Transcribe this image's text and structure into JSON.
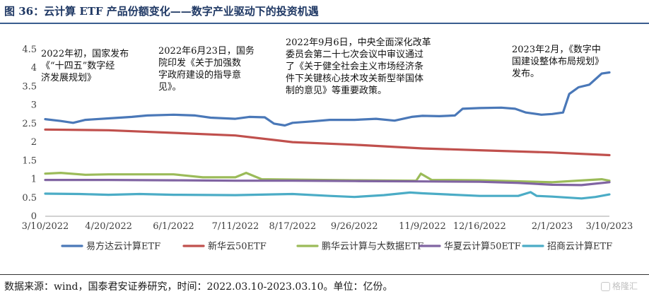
{
  "header": {
    "title": "图 36：云计算 ETF 产品份额变化——数字产业驱动下的投资机遇"
  },
  "footer": {
    "source": "数据来源：wind，国泰君安证券研究，时间：2022.03.10-2023.03.10。单位：亿份。",
    "watermark": "格隆汇"
  },
  "chart_data": {
    "type": "line",
    "title": "",
    "xlabel": "",
    "ylabel": "",
    "x_range": [
      "2022-03-10",
      "2023-03-10"
    ],
    "ylim": [
      0,
      4.5
    ],
    "y_ticks": [
      "0",
      "0.5",
      "1",
      "1.5",
      "2",
      "2.5",
      "3",
      "3.5",
      "4",
      "4.5"
    ],
    "x_ticks": [
      {
        "date": "2022-03-10",
        "label": "3/10/2022"
      },
      {
        "date": "2022-04-20",
        "label": "4/20/2022"
      },
      {
        "date": "2022-06-01",
        "label": "6/1/2022"
      },
      {
        "date": "2022-07-11",
        "label": "7/11/2022"
      },
      {
        "date": "2022-08-17",
        "label": "8/17/2022"
      },
      {
        "date": "2022-09-26",
        "label": "9/26/2022"
      },
      {
        "date": "2022-11-09",
        "label": "11/9/2022"
      },
      {
        "date": "2022-12-16",
        "label": "12/16/2022"
      },
      {
        "date": "2023-02-01",
        "label": "2/1/2023"
      },
      {
        "date": "2023-03-10",
        "label": "3/10/2023"
      }
    ],
    "grid": false,
    "legend_position": "bottom",
    "annotations": [
      {
        "lines": [
          "2022年初，国家发布",
          "《“十四五”数字经",
          "济发展规划》"
        ]
      },
      {
        "lines": [
          "2022年6月23日，国务",
          "院印发《关于加强数",
          "字政府建设的指导意",
          "见》。"
        ]
      },
      {
        "lines": [
          "2022年9月6日，中央全面深化改革",
          "委员会第二十七次会议中审议通过",
          "了《关于健全社会主义市场经济条",
          "件下关键核心技术攻关新型举国体",
          "制的意见》等重要政策。"
        ]
      },
      {
        "lines": [
          "2023年2月，《数字中",
          "国建设整体布局规划》",
          "发布。"
        ]
      }
    ],
    "series": [
      {
        "name": "易方达云计算ETF",
        "color": "#4a78b8",
        "points": [
          [
            "2022-03-10",
            2.62
          ],
          [
            "2022-03-20",
            2.57
          ],
          [
            "2022-03-28",
            2.52
          ],
          [
            "2022-04-05",
            2.6
          ],
          [
            "2022-04-20",
            2.64
          ],
          [
            "2022-05-05",
            2.68
          ],
          [
            "2022-05-15",
            2.72
          ],
          [
            "2022-06-01",
            2.74
          ],
          [
            "2022-06-15",
            2.72
          ],
          [
            "2022-06-25",
            2.66
          ],
          [
            "2022-07-11",
            2.63
          ],
          [
            "2022-07-20",
            2.68
          ],
          [
            "2022-07-30",
            2.67
          ],
          [
            "2022-08-05",
            2.5
          ],
          [
            "2022-08-12",
            2.45
          ],
          [
            "2022-08-17",
            2.52
          ],
          [
            "2022-08-30",
            2.56
          ],
          [
            "2022-09-10",
            2.6
          ],
          [
            "2022-09-26",
            2.6
          ],
          [
            "2022-10-10",
            2.63
          ],
          [
            "2022-10-22",
            2.58
          ],
          [
            "2022-11-02",
            2.68
          ],
          [
            "2022-11-09",
            2.71
          ],
          [
            "2022-11-20",
            2.7
          ],
          [
            "2022-11-30",
            2.72
          ],
          [
            "2022-12-05",
            2.9
          ],
          [
            "2022-12-16",
            2.92
          ],
          [
            "2022-12-30",
            2.93
          ],
          [
            "2023-01-08",
            2.9
          ],
          [
            "2023-01-15",
            2.8
          ],
          [
            "2023-01-25",
            2.74
          ],
          [
            "2023-02-01",
            2.76
          ],
          [
            "2023-02-08",
            2.8
          ],
          [
            "2023-02-12",
            3.3
          ],
          [
            "2023-02-18",
            3.48
          ],
          [
            "2023-02-25",
            3.55
          ],
          [
            "2023-03-01",
            3.7
          ],
          [
            "2023-03-05",
            3.85
          ],
          [
            "2023-03-10",
            3.88
          ]
        ]
      },
      {
        "name": "新华云50ETF",
        "color": "#c0504d",
        "points": [
          [
            "2022-03-10",
            2.34
          ],
          [
            "2022-04-20",
            2.32
          ],
          [
            "2022-06-01",
            2.25
          ],
          [
            "2022-07-11",
            2.18
          ],
          [
            "2022-08-17",
            2.0
          ],
          [
            "2022-09-26",
            1.93
          ],
          [
            "2022-11-09",
            1.83
          ],
          [
            "2022-12-16",
            1.78
          ],
          [
            "2023-02-01",
            1.72
          ],
          [
            "2023-03-10",
            1.65
          ]
        ]
      },
      {
        "name": "鹏华云计算与大数据ETF",
        "color": "#9bbb59",
        "points": [
          [
            "2022-03-10",
            1.15
          ],
          [
            "2022-03-20",
            1.17
          ],
          [
            "2022-04-05",
            1.12
          ],
          [
            "2022-04-20",
            1.13
          ],
          [
            "2022-06-01",
            1.13
          ],
          [
            "2022-06-20",
            1.05
          ],
          [
            "2022-07-11",
            1.05
          ],
          [
            "2022-07-18",
            1.17
          ],
          [
            "2022-07-28",
            1.0
          ],
          [
            "2022-08-17",
            0.99
          ],
          [
            "2022-09-26",
            0.97
          ],
          [
            "2022-11-05",
            0.96
          ],
          [
            "2022-11-08",
            1.15
          ],
          [
            "2022-11-15",
            0.98
          ],
          [
            "2022-12-16",
            0.97
          ],
          [
            "2023-02-01",
            0.92
          ],
          [
            "2023-03-05",
            1.0
          ],
          [
            "2023-03-10",
            0.96
          ]
        ]
      },
      {
        "name": "华夏云计算50ETF",
        "color": "#8064a2",
        "points": [
          [
            "2022-03-10",
            0.98
          ],
          [
            "2022-04-20",
            0.98
          ],
          [
            "2022-06-01",
            0.97
          ],
          [
            "2022-07-11",
            0.96
          ],
          [
            "2022-08-17",
            0.96
          ],
          [
            "2022-09-26",
            0.95
          ],
          [
            "2022-11-09",
            0.94
          ],
          [
            "2022-12-16",
            0.93
          ],
          [
            "2023-01-10",
            0.9
          ],
          [
            "2023-02-01",
            0.85
          ],
          [
            "2023-02-20",
            0.84
          ],
          [
            "2023-03-10",
            0.92
          ]
        ]
      },
      {
        "name": "招商云计算ETF",
        "color": "#4bacc6",
        "points": [
          [
            "2022-03-10",
            0.61
          ],
          [
            "2022-04-01",
            0.6
          ],
          [
            "2022-04-20",
            0.58
          ],
          [
            "2022-05-10",
            0.6
          ],
          [
            "2022-06-01",
            0.58
          ],
          [
            "2022-07-11",
            0.57
          ],
          [
            "2022-08-17",
            0.6
          ],
          [
            "2022-09-10",
            0.55
          ],
          [
            "2022-09-26",
            0.52
          ],
          [
            "2022-10-15",
            0.57
          ],
          [
            "2022-11-01",
            0.64
          ],
          [
            "2022-11-09",
            0.62
          ],
          [
            "2022-12-16",
            0.55
          ],
          [
            "2023-01-10",
            0.55
          ],
          [
            "2023-01-18",
            0.65
          ],
          [
            "2023-01-22",
            0.55
          ],
          [
            "2023-02-01",
            0.53
          ],
          [
            "2023-02-20",
            0.48
          ],
          [
            "2023-03-01",
            0.52
          ],
          [
            "2023-03-10",
            0.59
          ]
        ]
      }
    ]
  }
}
